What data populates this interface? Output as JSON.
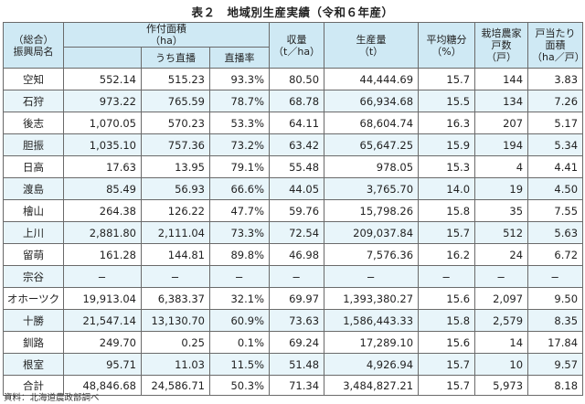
{
  "title": "表２　地域別生産実績（令和６年産）",
  "headers": {
    "region": "（総合）\n振興局名",
    "area": "作付面積\n（ha）",
    "direct": "うち直播",
    "direct_rate": "直播率",
    "yield": "収量\n（t／ha）",
    "production": "生産量\n（t）",
    "sugar": "平均糖分\n（%）",
    "farms": "栽培農家\n戸数\n（戸）",
    "per_farm": "戸当たり\n面積\n（ha／戸）"
  },
  "rows": [
    {
      "region": "空知",
      "area": "552.14",
      "direct": "515.23",
      "rate": "93.3%",
      "yield": "80.50",
      "production": "44,444.69",
      "sugar": "15.7",
      "farms": "144",
      "per_farm": "3.83"
    },
    {
      "region": "石狩",
      "area": "973.22",
      "direct": "765.59",
      "rate": "78.7%",
      "yield": "68.78",
      "production": "66,934.68",
      "sugar": "15.5",
      "farms": "134",
      "per_farm": "7.26"
    },
    {
      "region": "後志",
      "area": "1,070.05",
      "direct": "570.23",
      "rate": "53.3%",
      "yield": "64.11",
      "production": "68,604.74",
      "sugar": "16.3",
      "farms": "207",
      "per_farm": "5.17"
    },
    {
      "region": "胆振",
      "area": "1,035.10",
      "direct": "757.36",
      "rate": "73.2%",
      "yield": "63.42",
      "production": "65,647.25",
      "sugar": "15.9",
      "farms": "194",
      "per_farm": "5.34"
    },
    {
      "region": "日高",
      "area": "17.63",
      "direct": "13.95",
      "rate": "79.1%",
      "yield": "55.48",
      "production": "978.05",
      "sugar": "15.3",
      "farms": "4",
      "per_farm": "4.41"
    },
    {
      "region": "渡島",
      "area": "85.49",
      "direct": "56.93",
      "rate": "66.6%",
      "yield": "44.05",
      "production": "3,765.70",
      "sugar": "14.0",
      "farms": "19",
      "per_farm": "4.50"
    },
    {
      "region": "檜山",
      "area": "264.38",
      "direct": "126.22",
      "rate": "47.7%",
      "yield": "59.76",
      "production": "15,798.26",
      "sugar": "15.8",
      "farms": "35",
      "per_farm": "7.55"
    },
    {
      "region": "上川",
      "area": "2,881.80",
      "direct": "2,111.04",
      "rate": "73.3%",
      "yield": "72.54",
      "production": "209,037.84",
      "sugar": "15.7",
      "farms": "512",
      "per_farm": "5.63"
    },
    {
      "region": "留萌",
      "area": "161.28",
      "direct": "144.81",
      "rate": "89.8%",
      "yield": "46.98",
      "production": "7,576.36",
      "sugar": "16.2",
      "farms": "24",
      "per_farm": "6.72"
    },
    {
      "region": "宗谷",
      "area": "−",
      "direct": "−",
      "rate": "−",
      "yield": "−",
      "production": "−",
      "sugar": "−",
      "farms": "−",
      "per_farm": "−"
    },
    {
      "region": "オホーツク",
      "area": "19,913.04",
      "direct": "6,383.37",
      "rate": "32.1%",
      "yield": "69.97",
      "production": "1,393,380.27",
      "sugar": "15.6",
      "farms": "2,097",
      "per_farm": "9.50"
    },
    {
      "region": "十勝",
      "area": "21,547.14",
      "direct": "13,130.70",
      "rate": "60.9%",
      "yield": "73.63",
      "production": "1,586,443.33",
      "sugar": "15.8",
      "farms": "2,579",
      "per_farm": "8.35"
    },
    {
      "region": "釧路",
      "area": "249.70",
      "direct": "0.25",
      "rate": "0.1%",
      "yield": "69.24",
      "production": "17,289.10",
      "sugar": "15.6",
      "farms": "14",
      "per_farm": "17.84"
    },
    {
      "region": "根室",
      "area": "95.71",
      "direct": "11.03",
      "rate": "11.5%",
      "yield": "51.48",
      "production": "4,926.94",
      "sugar": "15.7",
      "farms": "10",
      "per_farm": "9.57"
    },
    {
      "region": "合計",
      "area": "48,846.68",
      "direct": "24,586.71",
      "rate": "50.3%",
      "yield": "71.34",
      "production": "3,484,827.21",
      "sugar": "15.7",
      "farms": "5,973",
      "per_farm": "8.18"
    }
  ],
  "source": "資料：北海道農政部調べ"
}
